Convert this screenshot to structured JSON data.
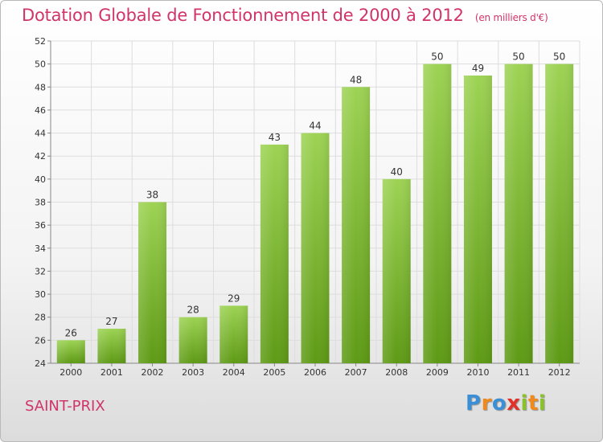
{
  "title": "Dotation Globale de Fonctionnement de 2000 à 2012",
  "subtitle": "(en milliers d'€)",
  "commune": "SAINT-PRIX",
  "logo": {
    "letters": [
      "P",
      "r",
      "o",
      "x",
      "i",
      "t",
      "i"
    ],
    "colors": [
      "#3b8fd6",
      "#f08a1c",
      "#3b8fd6",
      "#e2312b",
      "#89c22a",
      "#f08a1c",
      "#89c22a"
    ]
  },
  "colors": {
    "title": "#d0346a",
    "bar_light": "#9dd354",
    "bar_dark": "#5e9a15",
    "grid": "#dddddd"
  },
  "chart_data": {
    "type": "bar",
    "categories": [
      "2000",
      "2001",
      "2002",
      "2003",
      "2004",
      "2005",
      "2006",
      "2007",
      "2008",
      "2009",
      "2010",
      "2011",
      "2012"
    ],
    "values": [
      26,
      27,
      38,
      28,
      29,
      43,
      44,
      48,
      40,
      50,
      49,
      50,
      50
    ],
    "data_labels": [
      "26",
      "27",
      "38",
      "28",
      "29",
      "43",
      "44",
      "48",
      "40",
      "50",
      "49",
      "50",
      "50"
    ],
    "title": "Dotation Globale de Fonctionnement de 2000 à 2012",
    "xlabel": "",
    "ylabel": "",
    "ylim": [
      24,
      52
    ],
    "yticks": [
      24,
      26,
      28,
      30,
      32,
      34,
      36,
      38,
      40,
      42,
      44,
      46,
      48,
      50,
      52
    ],
    "grid": true
  }
}
